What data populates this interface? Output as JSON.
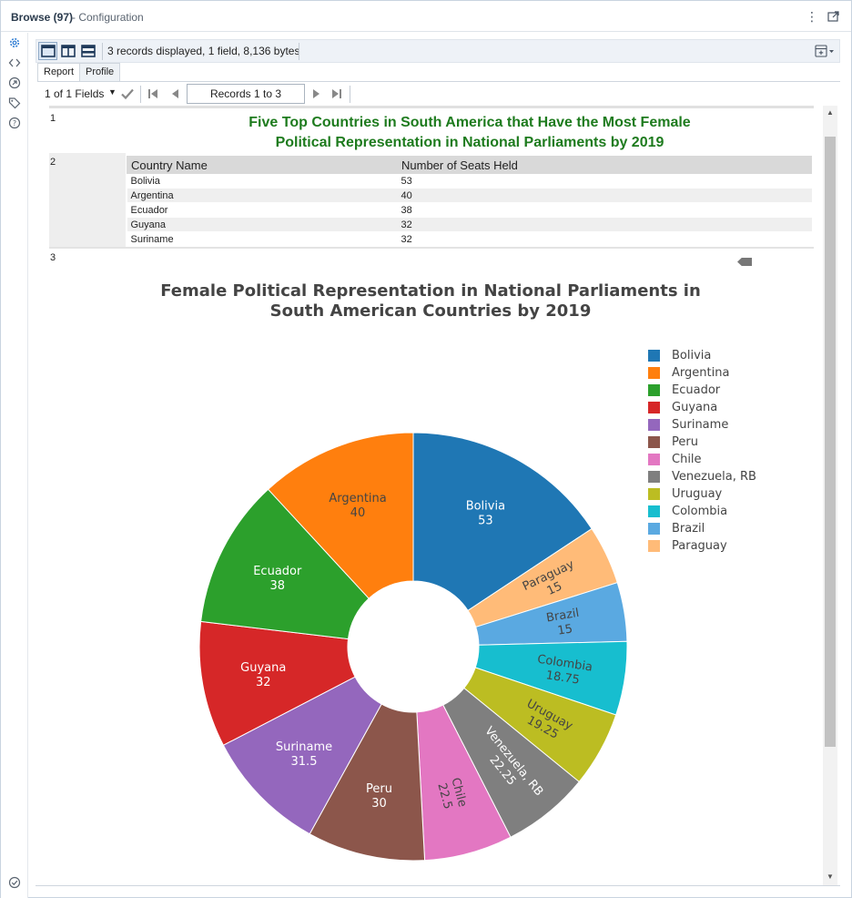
{
  "window": {
    "title": "Browse (97)",
    "subtitle": "- Configuration"
  },
  "toolbar": {
    "status": "3 records displayed, 1 field, 8,136 bytes"
  },
  "tabs": [
    {
      "label": "Report",
      "active": true
    },
    {
      "label": "Profile",
      "active": false
    }
  ],
  "nav": {
    "fields_label": "1 of 1 Fields",
    "records_label": "Records 1 to 3"
  },
  "rows": {
    "r1": "1",
    "r2": "2",
    "r3": "3"
  },
  "report": {
    "title_line1": "Five Top Countries in South America that Have the Most Female",
    "title_line2": "Political Representation in National Parliaments by 2019",
    "title_color": "#1e7b1e",
    "table": {
      "headers": [
        "Country Name",
        "Number of Seats Held"
      ],
      "rows": [
        [
          "Bolivia",
          "53"
        ],
        [
          "Argentina",
          "40"
        ],
        [
          "Ecuador",
          "38"
        ],
        [
          "Guyana",
          "32"
        ],
        [
          "Suriname",
          "32"
        ]
      ]
    }
  },
  "chart_data": {
    "type": "pie",
    "hole": true,
    "title_line1": "Female Political Representation in National Parliaments in",
    "title_line2": "South American Countries by 2019",
    "slices": [
      {
        "label": "Bolivia",
        "value": 53,
        "text": "53",
        "color": "#1f77b4",
        "textColor": "#ffffff"
      },
      {
        "label": "Paraguay",
        "value": 15,
        "text": "15",
        "color": "#ffbb78",
        "textColor": "#444444"
      },
      {
        "label": "Brazil",
        "value": 15,
        "text": "15",
        "color": "#5aa9e1",
        "textColor": "#444444"
      },
      {
        "label": "Colombia",
        "value": 18.75,
        "text": "18.75",
        "color": "#17becf",
        "textColor": "#444444"
      },
      {
        "label": "Uruguay",
        "value": 19.25,
        "text": "19.25",
        "color": "#bcbd22",
        "textColor": "#444444"
      },
      {
        "label": "Venezuela, RB",
        "value": 22.25,
        "text": "22.25",
        "color": "#7f7f7f",
        "textColor": "#ffffff"
      },
      {
        "label": "Chile",
        "value": 22.5,
        "text": "22.5",
        "color": "#e377c2",
        "textColor": "#444444"
      },
      {
        "label": "Peru",
        "value": 30,
        "text": "30",
        "color": "#8c564b",
        "textColor": "#ffffff"
      },
      {
        "label": "Suriname",
        "value": 31.5,
        "text": "31.5",
        "color": "#9467bd",
        "textColor": "#ffffff"
      },
      {
        "label": "Guyana",
        "value": 32,
        "text": "32",
        "color": "#d62728",
        "textColor": "#ffffff"
      },
      {
        "label": "Ecuador",
        "value": 38,
        "text": "38",
        "color": "#2ca02c",
        "textColor": "#ffffff"
      },
      {
        "label": "Argentina",
        "value": 40,
        "text": "40",
        "color": "#ff7f0e",
        "textColor": "#444444"
      }
    ],
    "legend": [
      {
        "label": "Bolivia",
        "color": "#1f77b4"
      },
      {
        "label": "Argentina",
        "color": "#ff7f0e"
      },
      {
        "label": "Ecuador",
        "color": "#2ca02c"
      },
      {
        "label": "Guyana",
        "color": "#d62728"
      },
      {
        "label": "Suriname",
        "color": "#9467bd"
      },
      {
        "label": "Peru",
        "color": "#8c564b"
      },
      {
        "label": "Chile",
        "color": "#e377c2"
      },
      {
        "label": "Venezuela, RB",
        "color": "#7f7f7f"
      },
      {
        "label": "Uruguay",
        "color": "#bcbd22"
      },
      {
        "label": "Colombia",
        "color": "#17becf"
      },
      {
        "label": "Brazil",
        "color": "#5aa9e1"
      },
      {
        "label": "Paraguay",
        "color": "#ffbb78"
      }
    ],
    "legend_position": "right"
  }
}
